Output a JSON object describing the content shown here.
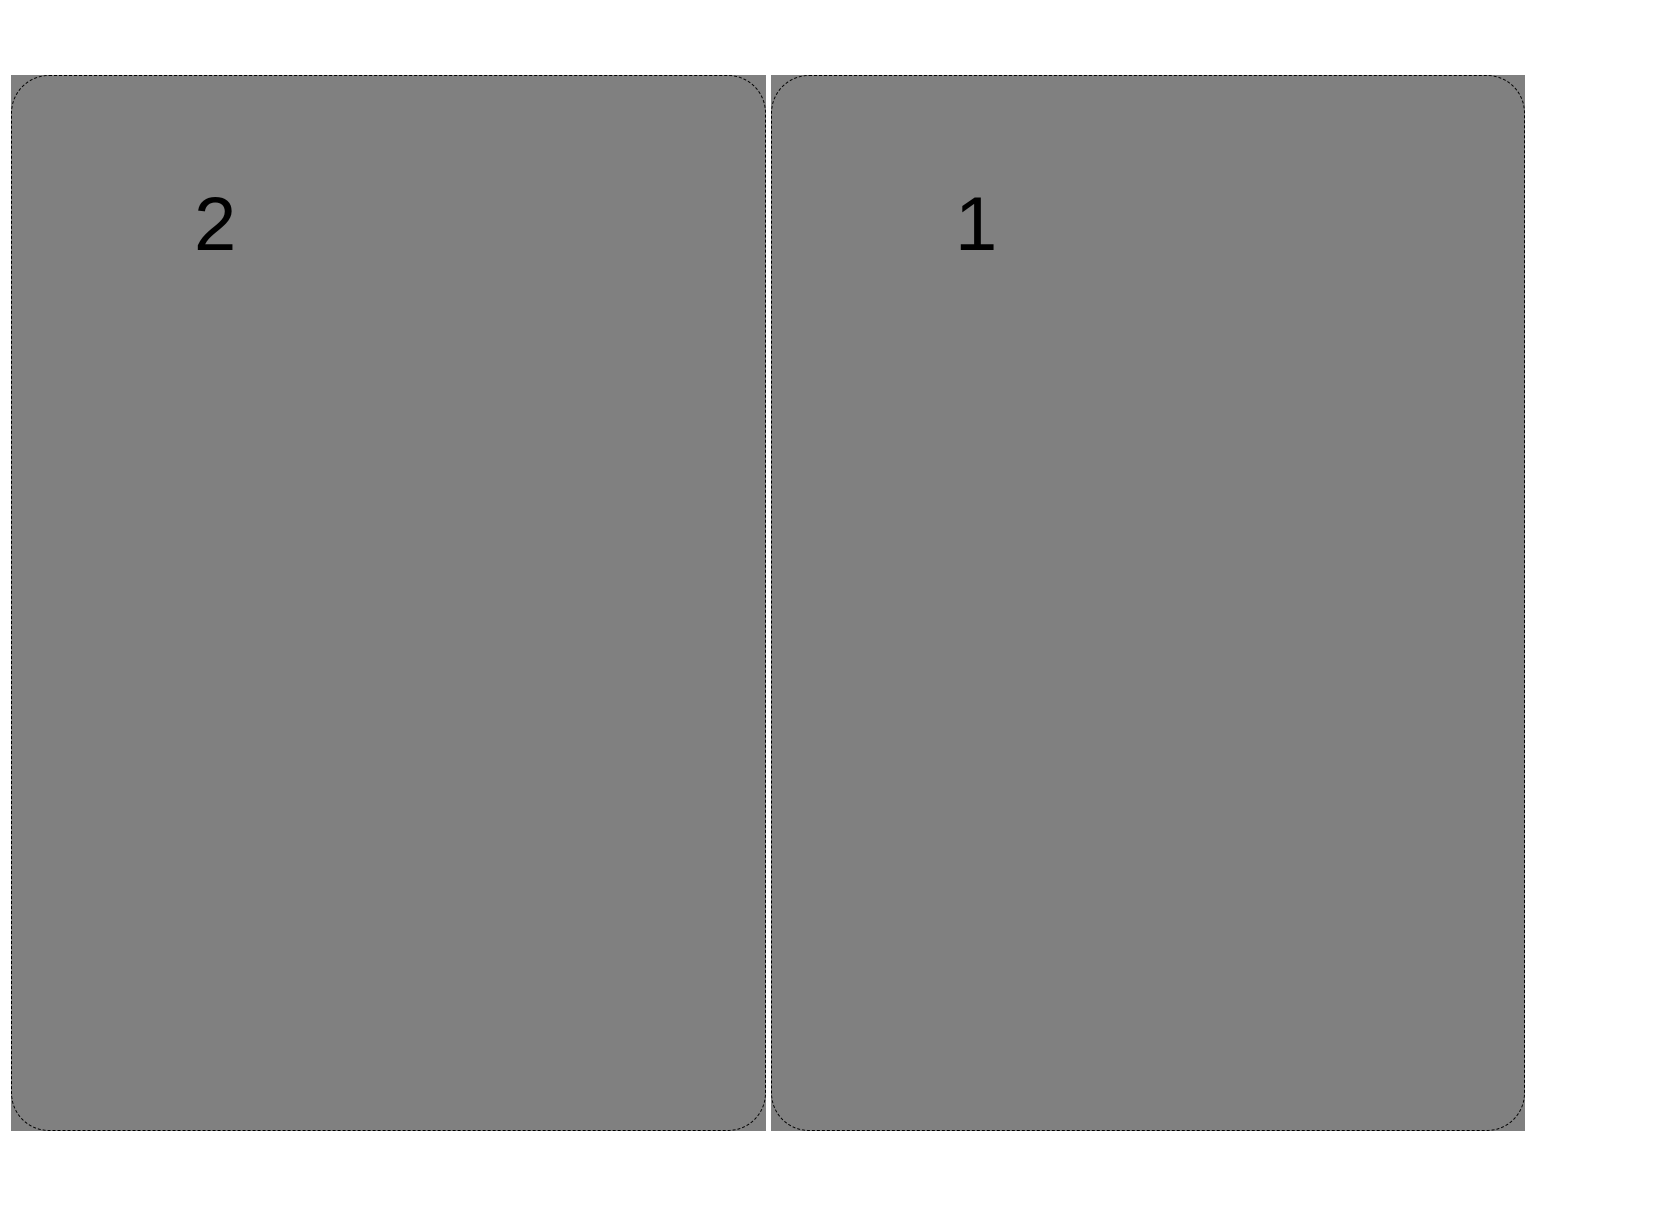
{
  "panels": [
    {
      "label": "2",
      "fill": "#808080",
      "border": "dashed"
    },
    {
      "label": "1",
      "fill": "#808080",
      "border": "dashed"
    }
  ]
}
